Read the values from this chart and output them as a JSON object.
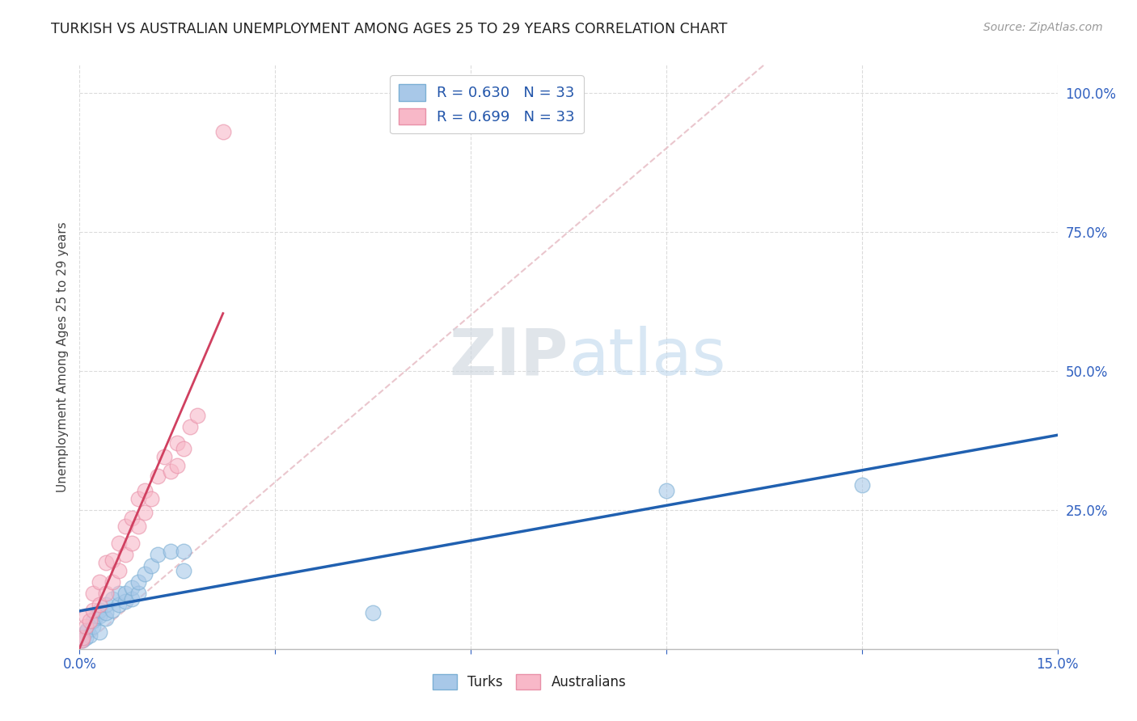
{
  "title": "TURKISH VS AUSTRALIAN UNEMPLOYMENT AMONG AGES 25 TO 29 YEARS CORRELATION CHART",
  "source": "Source: ZipAtlas.com",
  "ylabel": "Unemployment Among Ages 25 to 29 years",
  "xlim": [
    0.0,
    0.15
  ],
  "ylim": [
    0.0,
    1.05
  ],
  "xtick_positions": [
    0.0,
    0.03,
    0.06,
    0.09,
    0.12,
    0.15
  ],
  "xtick_labels": [
    "0.0%",
    "",
    "",
    "",
    "",
    "15.0%"
  ],
  "ytick_vals_right": [
    0.0,
    0.25,
    0.5,
    0.75,
    1.0
  ],
  "ytick_labels_right": [
    "",
    "25.0%",
    "50.0%",
    "75.0%",
    "100.0%"
  ],
  "turks_color": "#a8c8e8",
  "turks_edge_color": "#7bafd4",
  "australians_color": "#f8b8c8",
  "australians_edge_color": "#e890a8",
  "turks_line_color": "#2060b0",
  "australians_line_color": "#d04060",
  "diagonal_color": "#e8c0c8",
  "background_color": "#ffffff",
  "grid_color": "#d8d8d8",
  "legend_R_turks": "R = 0.630",
  "legend_N_turks": "N = 33",
  "legend_R_australians": "R = 0.699",
  "legend_N_australians": "N = 33",
  "turks_x": [
    0.0005,
    0.001,
    0.001,
    0.0012,
    0.0015,
    0.002,
    0.002,
    0.0025,
    0.003,
    0.003,
    0.003,
    0.004,
    0.004,
    0.004,
    0.005,
    0.005,
    0.006,
    0.006,
    0.007,
    0.007,
    0.008,
    0.008,
    0.009,
    0.009,
    0.01,
    0.011,
    0.012,
    0.014,
    0.016,
    0.016,
    0.045,
    0.09,
    0.12
  ],
  "turks_y": [
    0.015,
    0.02,
    0.03,
    0.035,
    0.025,
    0.04,
    0.05,
    0.06,
    0.03,
    0.06,
    0.07,
    0.055,
    0.065,
    0.08,
    0.07,
    0.09,
    0.08,
    0.1,
    0.085,
    0.1,
    0.09,
    0.11,
    0.1,
    0.12,
    0.135,
    0.15,
    0.17,
    0.175,
    0.14,
    0.175,
    0.065,
    0.285,
    0.295
  ],
  "australians_x": [
    0.0003,
    0.0005,
    0.001,
    0.001,
    0.0015,
    0.002,
    0.002,
    0.003,
    0.003,
    0.004,
    0.004,
    0.005,
    0.005,
    0.006,
    0.006,
    0.007,
    0.007,
    0.008,
    0.008,
    0.009,
    0.009,
    0.01,
    0.01,
    0.011,
    0.012,
    0.013,
    0.014,
    0.015,
    0.015,
    0.016,
    0.017,
    0.018,
    0.022
  ],
  "australians_y": [
    0.015,
    0.02,
    0.04,
    0.06,
    0.05,
    0.07,
    0.1,
    0.08,
    0.12,
    0.1,
    0.155,
    0.12,
    0.16,
    0.14,
    0.19,
    0.17,
    0.22,
    0.19,
    0.235,
    0.22,
    0.27,
    0.245,
    0.285,
    0.27,
    0.31,
    0.345,
    0.32,
    0.33,
    0.37,
    0.36,
    0.4,
    0.42,
    0.93
  ]
}
